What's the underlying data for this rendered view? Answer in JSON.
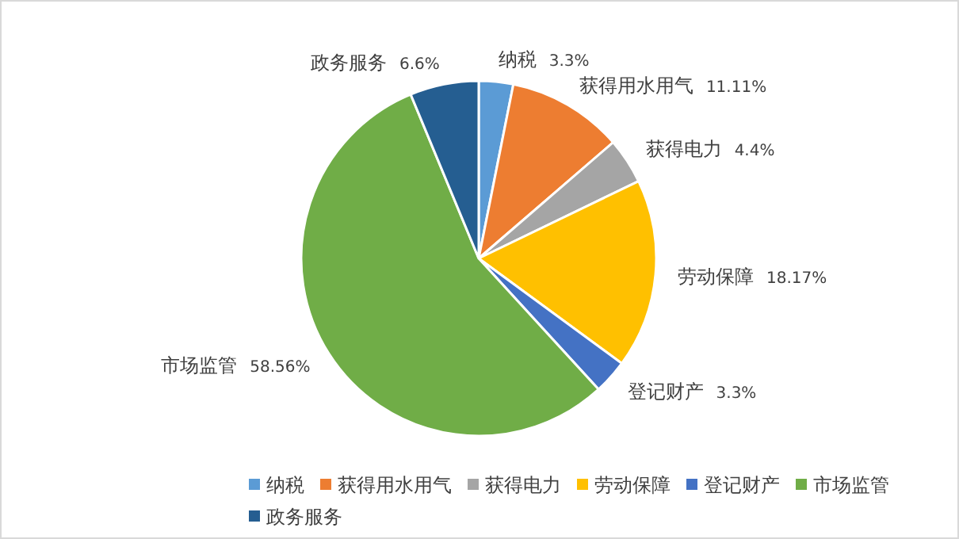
{
  "chart_data": {
    "type": "pie",
    "categories": [
      "纳税",
      "获得用水用气",
      "获得电力",
      "劳动保障",
      "登记财产",
      "市场监管",
      "政务服务"
    ],
    "values": [
      3.3,
      11.11,
      4.4,
      18.17,
      3.3,
      58.56,
      6.6
    ],
    "value_labels": [
      "3.3%",
      "11.11%",
      "4.4%",
      "18.17%",
      "3.3%",
      "58.56%",
      "6.6%"
    ],
    "colors": [
      "#5b9bd5",
      "#ed7d31",
      "#a5a5a5",
      "#ffc000",
      "#4472c4",
      "#70ad47",
      "#255e91"
    ],
    "legend": "bottom"
  }
}
